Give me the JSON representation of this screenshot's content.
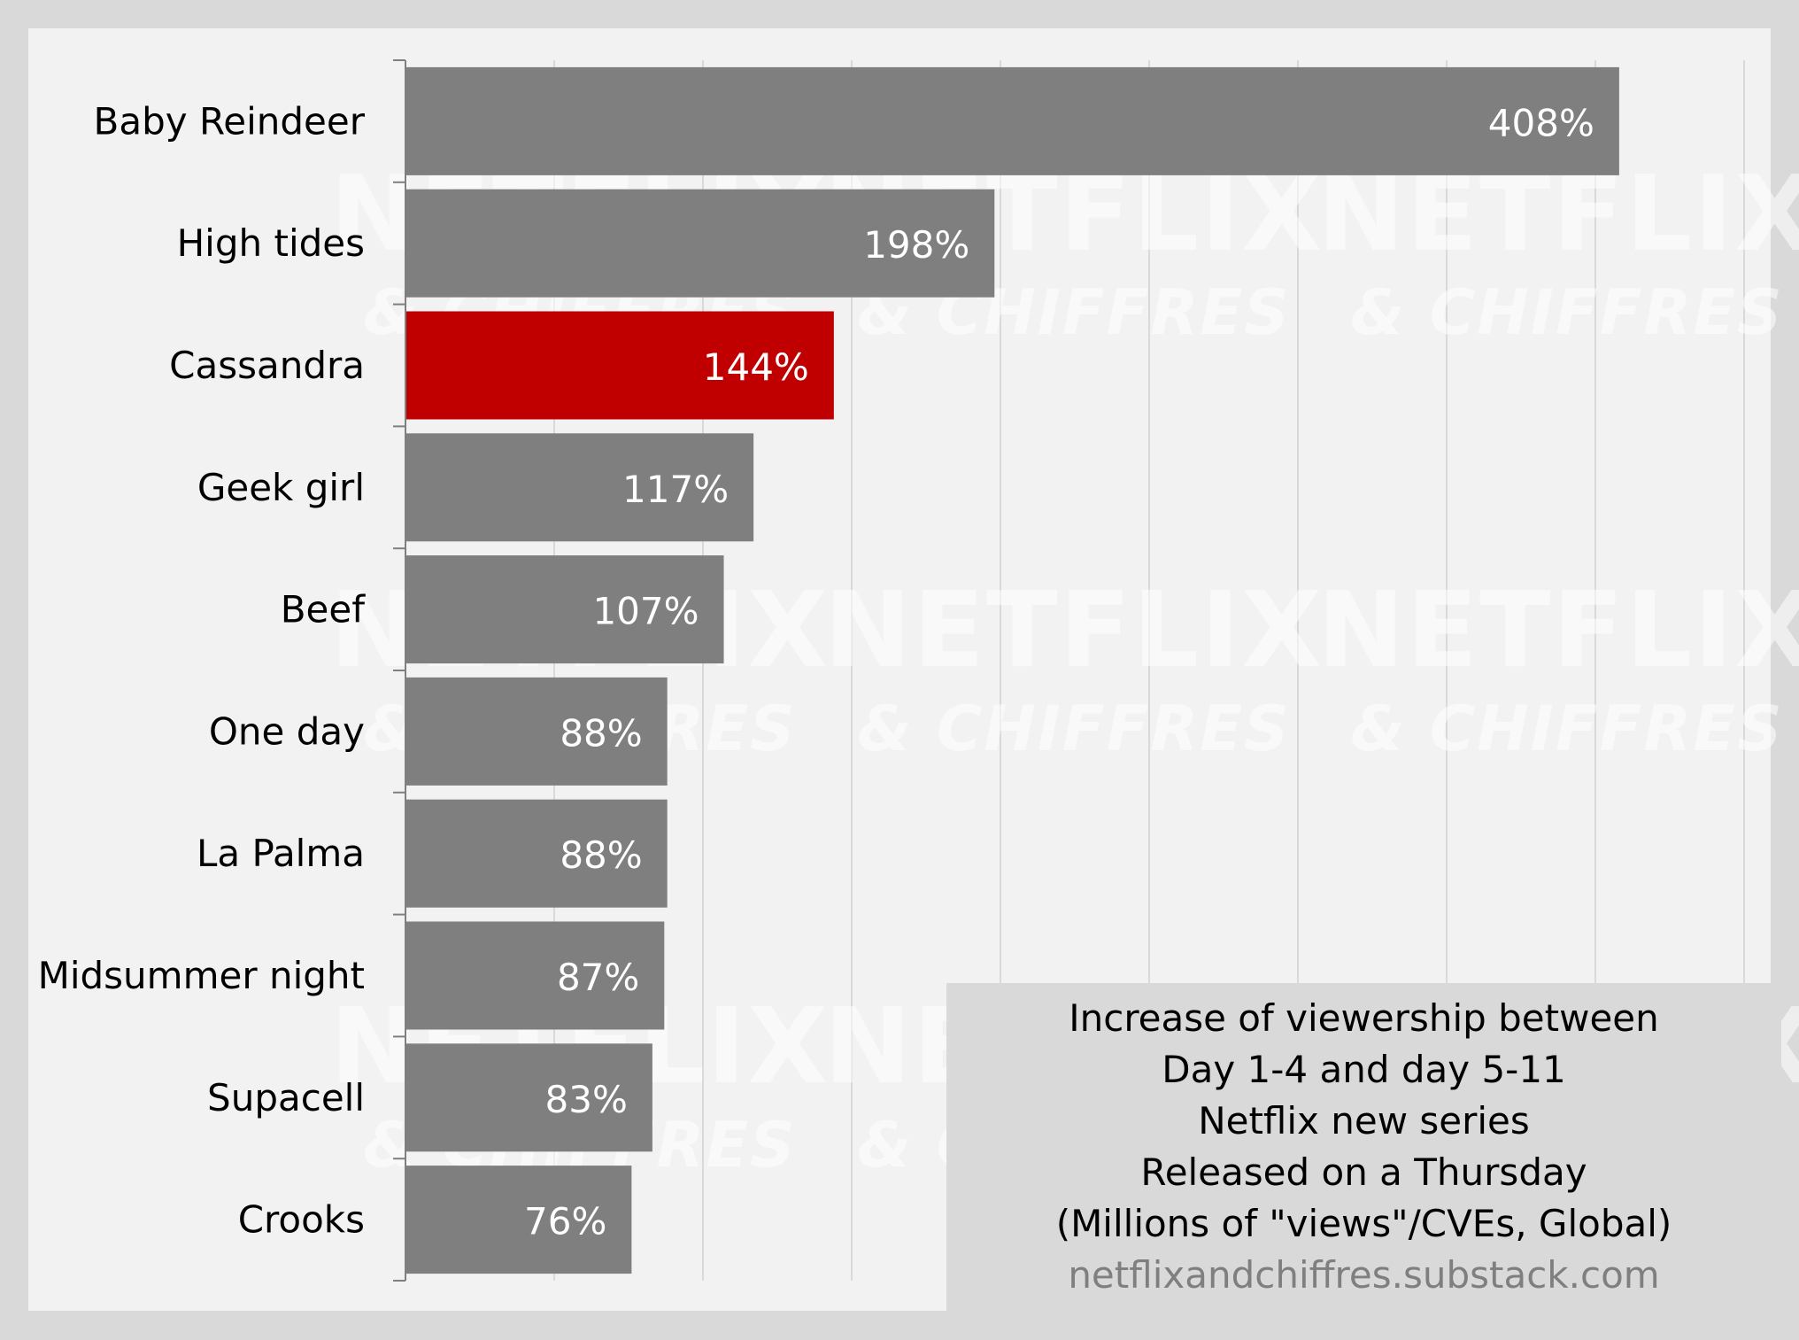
{
  "chart_data": {
    "type": "bar",
    "orientation": "horizontal",
    "categories": [
      "Baby Reindeer",
      "High tides",
      "Cassandra",
      "Geek girl",
      "Beef",
      "One day",
      "La Palma",
      "Midsummer night",
      "Supacell",
      "Crooks"
    ],
    "values": [
      408,
      198,
      144,
      117,
      107,
      88,
      88,
      87,
      83,
      76
    ],
    "value_labels": [
      "408%",
      "198%",
      "144%",
      "117%",
      "107%",
      "88%",
      "88%",
      "87%",
      "83%",
      "76%"
    ],
    "highlight_category": "Cassandra",
    "xlim": [
      0,
      450
    ],
    "grid": true,
    "unit": "%"
  },
  "caption": {
    "lines": [
      "Increase of viewership between",
      "Day 1-4 and day 5-11",
      "Netflix new series",
      "Released on a Thursday",
      "(Millions of \"views\"/CVEs, Global)"
    ],
    "source": "netflixandchiffres.substack.com"
  },
  "watermark": {
    "brand": "NETFLIX",
    "tagline": "& CHIFFRES"
  },
  "colors": {
    "bar": "#7f7f7f",
    "highlight": "#c00000",
    "plot_background": "#f2f2f2",
    "page_background": "#d9d9d9",
    "gridline": "#d9d9d9",
    "source_text": "#7f7f7f"
  }
}
